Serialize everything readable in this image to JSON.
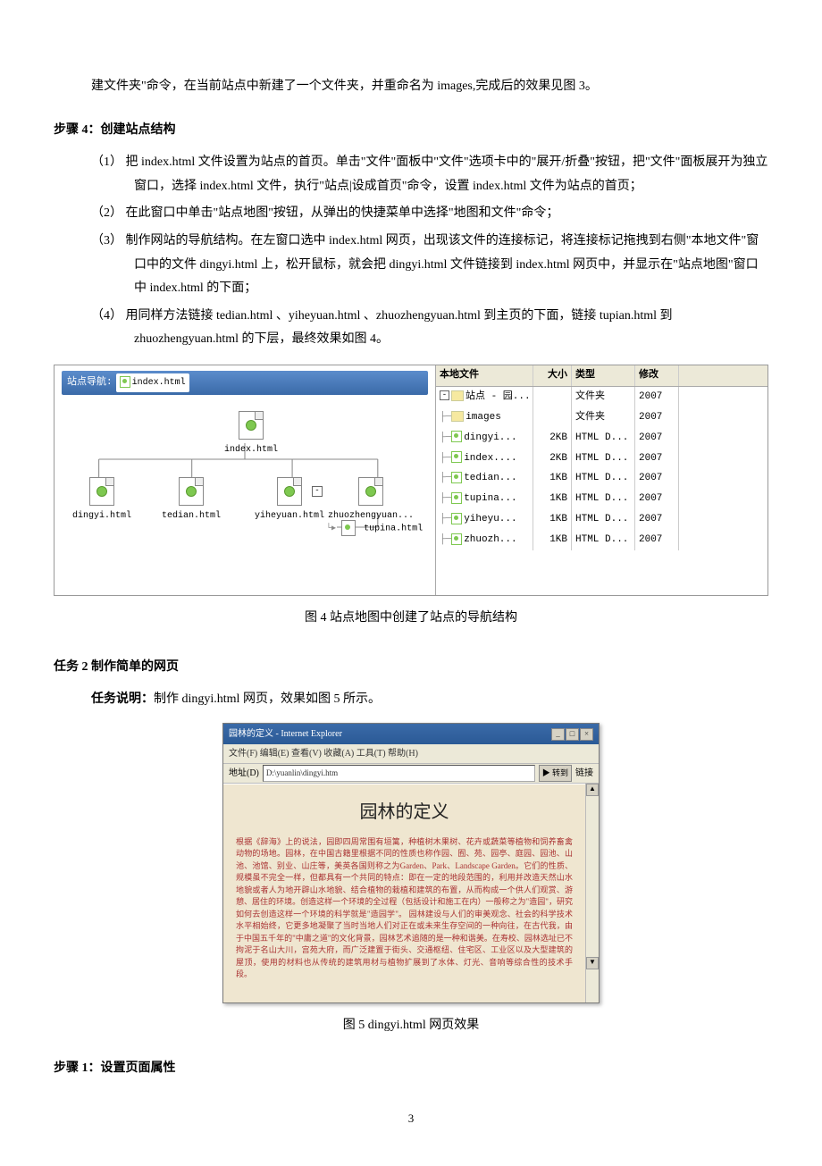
{
  "intro_para": "建文件夹\"命令，在当前站点中新建了一个文件夹，并重命名为 images,完成后的效果见图 3。",
  "step4_title": "步骤 4：创建站点结构",
  "step4_items": [
    "（1）  把 index.html 文件设置为站点的首页。单击\"文件\"面板中\"文件\"选项卡中的\"展开/折叠\"按钮，把\"文件\"面板展开为独立窗口，选择 index.html 文件，执行\"站点|设成首页\"命令，设置 index.html 文件为站点的首页；",
    "（2）  在此窗口中单击\"站点地图\"按钮，从弹出的快捷菜单中选择\"地图和文件\"命令；",
    "（3）  制作网站的导航结构。在左窗口选中 index.html 网页，出现该文件的连接标记，将连接标记拖拽到右侧\"本地文件\"窗口中的文件 dingyi.html 上，松开鼠标，就会把 dingyi.html 文件链接到 index.html 网页中，并显示在\"站点地图\"窗口中 index.html 的下面；",
    "（4）  用同样方法链接 tedian.html 、yiheyuan.html 、zhuozhengyuan.html 到主页的下面，链接 tupian.html 到 zhuozhengyuan.html 的下层，最终效果如图 4。"
  ],
  "fig4": {
    "nav_label": "站点导航:",
    "nav_file": "index.html",
    "root": "index.html",
    "children": [
      "dingyi.html",
      "tedian.html",
      "yiheyuan.html",
      "zhuozhengyuan..."
    ],
    "grandchild": "tupina.html",
    "right_header": [
      "本地文件",
      "大小",
      "类型",
      "修改"
    ],
    "right_rows": [
      {
        "indent": 0,
        "icon": "folder-open",
        "name": "站点 - 园...",
        "size": "",
        "type": "文件夹",
        "date": "2007"
      },
      {
        "indent": 1,
        "icon": "folder",
        "name": "images",
        "size": "",
        "type": "文件夹",
        "date": "2007"
      },
      {
        "indent": 1,
        "icon": "file",
        "name": "dingyi...",
        "size": "2KB",
        "type": "HTML D...",
        "date": "2007"
      },
      {
        "indent": 1,
        "icon": "file",
        "name": "index....",
        "size": "2KB",
        "type": "HTML D...",
        "date": "2007"
      },
      {
        "indent": 1,
        "icon": "file",
        "name": "tedian...",
        "size": "1KB",
        "type": "HTML D...",
        "date": "2007"
      },
      {
        "indent": 1,
        "icon": "file",
        "name": "tupina...",
        "size": "1KB",
        "type": "HTML D...",
        "date": "2007"
      },
      {
        "indent": 1,
        "icon": "file",
        "name": "yiheyu...",
        "size": "1KB",
        "type": "HTML D...",
        "date": "2007"
      },
      {
        "indent": 1,
        "icon": "file",
        "name": "zhuozh...",
        "size": "1KB",
        "type": "HTML D...",
        "date": "2007"
      }
    ]
  },
  "fig4_caption": "图 4    站点地图中创建了站点的导航结构",
  "task2_title": "任务 2     制作简单的网页",
  "task2_desc_label": "任务说明：",
  "task2_desc_text": "制作 dingyi.html 网页，效果如图 5 所示。",
  "fig5": {
    "window_title": "园林的定义 - Internet Explorer",
    "menu": "文件(F)  编辑(E)  查看(V)  收藏(A)  工具(T)  帮助(H)",
    "addr_label": "地址(D)",
    "addr_value": "D:\\yuanlin\\dingyi.htm",
    "go_label": "转到",
    "links_label": "链接",
    "heading": "园林的定义",
    "body_text": "    根据《辞海》上的说法，园即四周常围有垣篱，种植树木果树、花卉或蔬菜等植物和饲养畜禽动物的场地。园林，在中国古籍里根据不同的性质也称作园、囿、苑、园亭、庭园、园池、山池、池馆、别业、山庄等，美英各国则称之为Garden、Park、Landscape Garden。它们的性质、规模虽不完全一样，但都具有一个共同的特点：即在一定的地段范围的，利用并改造天然山水地貌或者人为地开辟山水地貌、结合植物的栽植和建筑的布置，从而构成一个供人们观赏、游憩、居住的环境。创造这样一个环境的全过程（包括设计和施工在内）一般称之为\"造园\"，研究如何去创造这样一个环境的科学就是\"造园学\"。    园林建设与人们的审美观念、社会的科学技术水平相始终，它更多地凝聚了当时当地人们对正在或未来生存空间的一种向往，在古代我，由于中国五千年的\"中庸之道\"的文化背景，园林艺术追随的是一种和谐美。在寿校、园林选址已不拘泥于名山大川，宫苑大府，而广泛建置于街头、交通枢纽、住宅区、工业区以及大型建筑的屋顶，使用的材料也从传统的建筑用材与植物扩展到了水体、灯光、音响等综合性的技术手段。",
    "scroll_up": "▲",
    "scroll_down": "▼"
  },
  "fig5_caption": "图 5    dingyi.html  网页效果",
  "step1_title": "步骤 1：设置页面属性",
  "page_number": "3"
}
